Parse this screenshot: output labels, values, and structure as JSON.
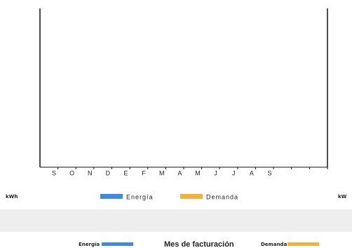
{
  "chart_data": {
    "type": "bar",
    "categories": [
      "S",
      "O",
      "N",
      "D",
      "E",
      "F",
      "M",
      "A",
      "M",
      "J",
      "J",
      "A",
      "S",
      null,
      null,
      null
    ],
    "series": [
      {
        "name": "Energía",
        "color": "#3d8be0",
        "values": [
          null,
          null,
          null,
          null,
          null,
          null,
          null,
          null,
          null,
          null,
          null,
          null,
          null,
          null,
          null,
          null
        ]
      },
      {
        "name": "Demanda",
        "color": "#f2b23a",
        "values": [
          null,
          null,
          null,
          null,
          null,
          null,
          null,
          null,
          null,
          null,
          null,
          null,
          null,
          null,
          null,
          null
        ]
      }
    ],
    "ylabel": "kWh",
    "y2label": "kW",
    "xlabel": "Mes de facturación"
  }
}
